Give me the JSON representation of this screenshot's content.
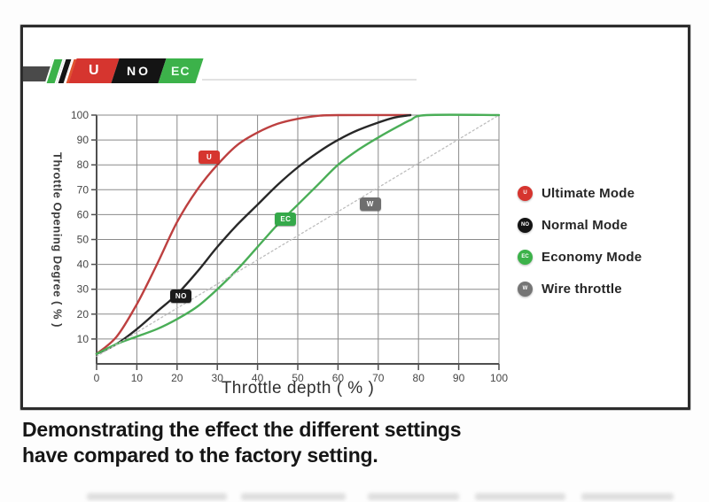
{
  "banner": {
    "segments": [
      {
        "label": "U",
        "color": "#d6352f"
      },
      {
        "label": "NO",
        "color": "#141414"
      },
      {
        "label": "EC",
        "color": "#3cb24a"
      }
    ]
  },
  "legend": {
    "items": [
      {
        "label": "Ultimate Mode",
        "badge": "U",
        "color": "#d6352f"
      },
      {
        "label": "Normal Mode",
        "badge": "NO",
        "color": "#141414"
      },
      {
        "label": "Economy Mode",
        "badge": "EC",
        "color": "#3cb24a"
      },
      {
        "label": "Wire throttle",
        "badge": "W",
        "color": "#757575"
      }
    ]
  },
  "caption": {
    "line1": "Demonstrating the effect the different settings",
    "line2": "have compared to the factory setting."
  },
  "chart_data": {
    "type": "line",
    "title": "",
    "xlabel": "Throttle depth ( % )",
    "ylabel": "Throttle Opening Degree ( % )",
    "xlim": [
      0,
      100
    ],
    "ylim": [
      0,
      100
    ],
    "xticks": [
      0,
      10,
      20,
      30,
      40,
      50,
      60,
      70,
      80,
      90,
      100
    ],
    "yticks": [
      10,
      20,
      30,
      40,
      50,
      60,
      70,
      80,
      90,
      100
    ],
    "grid": true,
    "legend_position": "right",
    "series": [
      {
        "name": "Ultimate Mode",
        "color": "#bd4040",
        "dashed": false,
        "points": [
          [
            0,
            4
          ],
          [
            5,
            11
          ],
          [
            10,
            24
          ],
          [
            15,
            40
          ],
          [
            20,
            57
          ],
          [
            25,
            70
          ],
          [
            30,
            80
          ],
          [
            35,
            88
          ],
          [
            40,
            93
          ],
          [
            45,
            96.5
          ],
          [
            50,
            98.5
          ],
          [
            55,
            99.7
          ],
          [
            60,
            100
          ],
          [
            78,
            100
          ]
        ]
      },
      {
        "name": "Normal Mode",
        "color": "#282828",
        "dashed": false,
        "points": [
          [
            0,
            4
          ],
          [
            5,
            8
          ],
          [
            10,
            14
          ],
          [
            15,
            21
          ],
          [
            20,
            28
          ],
          [
            25,
            37
          ],
          [
            30,
            47
          ],
          [
            35,
            56
          ],
          [
            40,
            64
          ],
          [
            45,
            72
          ],
          [
            50,
            79
          ],
          [
            55,
            85
          ],
          [
            60,
            90
          ],
          [
            65,
            94
          ],
          [
            70,
            97
          ],
          [
            74,
            99
          ],
          [
            78,
            100
          ]
        ]
      },
      {
        "name": "Economy Mode",
        "color": "#4aae57",
        "dashed": false,
        "points": [
          [
            0,
            4
          ],
          [
            5,
            8
          ],
          [
            10,
            11
          ],
          [
            15,
            14
          ],
          [
            20,
            18
          ],
          [
            25,
            23
          ],
          [
            30,
            30
          ],
          [
            35,
            38
          ],
          [
            40,
            47
          ],
          [
            45,
            56
          ],
          [
            50,
            64
          ],
          [
            55,
            72
          ],
          [
            60,
            80
          ],
          [
            65,
            86
          ],
          [
            70,
            91
          ],
          [
            75,
            95.5
          ],
          [
            78,
            98
          ],
          [
            82,
            100
          ],
          [
            100,
            100
          ]
        ]
      },
      {
        "name": "Wire throttle",
        "color": "#bdbdbd",
        "dashed": true,
        "points": [
          [
            0,
            3
          ],
          [
            100,
            100
          ]
        ]
      }
    ],
    "annotations": [
      {
        "label": "U",
        "x": 28,
        "y": 83,
        "color": "#d6352f"
      },
      {
        "label": "NO",
        "x": 21,
        "y": 27,
        "color": "#1b1b1b"
      },
      {
        "label": "EC",
        "x": 47,
        "y": 58,
        "color": "#35a94a"
      },
      {
        "label": "W",
        "x": 68,
        "y": 64,
        "color": "#6e6e6e"
      }
    ]
  }
}
